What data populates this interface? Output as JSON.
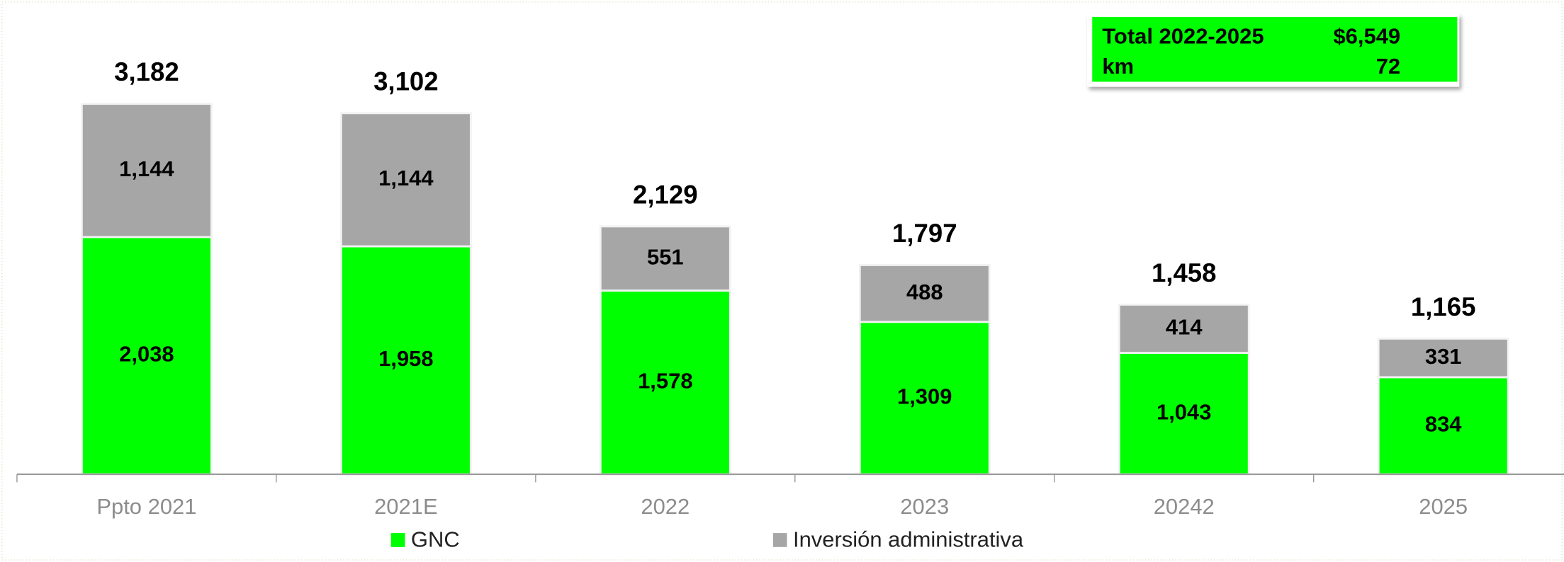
{
  "chart_data": {
    "type": "stacked-bar",
    "categories": [
      "Ppto 2021",
      "2021E",
      "2022",
      "2023",
      "20242",
      "2025"
    ],
    "series": [
      {
        "name": "GNC",
        "color": "#00ff00",
        "values": [
          2038,
          1958,
          1578,
          1309,
          1043,
          834
        ],
        "value_labels": [
          "2,038",
          "1,958",
          "1,578",
          "1,309",
          "1,043",
          "834"
        ]
      },
      {
        "name": "Inversión administrativa",
        "color": "#a6a6a6",
        "values": [
          1144,
          1144,
          551,
          488,
          414,
          331
        ],
        "value_labels": [
          "1,144",
          "1,144",
          "551",
          "488",
          "414",
          "331"
        ]
      }
    ],
    "totals": [
      3182,
      3102,
      2129,
      1797,
      1458,
      1165
    ],
    "total_labels": [
      "3,182",
      "3,102",
      "2,129",
      "1,797",
      "1,458",
      "1,165"
    ],
    "ylim": [
      0,
      3500
    ],
    "legend": "bottom",
    "annotation": {
      "color": "#00ff00",
      "rows": [
        [
          "Total 2022-2025",
          "$6,549"
        ],
        [
          "km",
          "72"
        ]
      ]
    }
  }
}
